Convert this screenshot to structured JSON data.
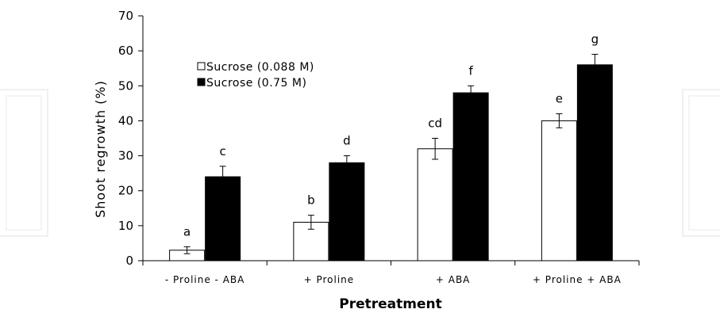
{
  "chart_data": {
    "type": "bar",
    "title": "",
    "xlabel": "Pretreatment",
    "ylabel": "Shoot regrowth (%)",
    "ylim": [
      0,
      70
    ],
    "yticks": [
      0,
      10,
      20,
      30,
      40,
      50,
      60,
      70
    ],
    "categories": [
      "- Proline - ABA",
      "+ Proline",
      "+ ABA",
      "+ Proline + ABA"
    ],
    "series": [
      {
        "name": "Sucrose (0.088 M)",
        "color": "#ffffff",
        "values": [
          3,
          11,
          32,
          40
        ],
        "errors": [
          1,
          2,
          3,
          2
        ],
        "labels": [
          "a",
          "b",
          "cd",
          "e"
        ]
      },
      {
        "name": "Sucrose (0.75 M)",
        "color": "#000000",
        "values": [
          24,
          28,
          48,
          56
        ],
        "errors": [
          3,
          2,
          2,
          3
        ],
        "labels": [
          "c",
          "d",
          "f",
          "g"
        ]
      }
    ],
    "legend_position": "top-left",
    "grid": false
  }
}
